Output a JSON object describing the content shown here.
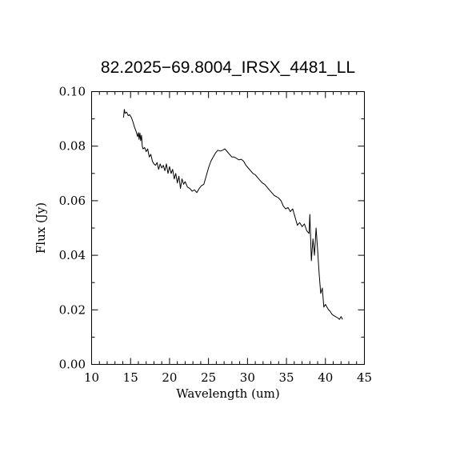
{
  "chart_data": {
    "type": "line",
    "title": "82.2025−69.8004_IRSX_4481_LL",
    "xlabel": "Wavelength (um)",
    "ylabel": "Flux (Jy)",
    "xlim": [
      10,
      45
    ],
    "ylim": [
      0.0,
      0.1
    ],
    "x_ticks": [
      "10",
      "15",
      "20",
      "25",
      "30",
      "35",
      "40",
      "45"
    ],
    "y_ticks": [
      "0.00",
      "0.02",
      "0.04",
      "0.06",
      "0.08",
      "0.10"
    ],
    "grid": false,
    "series": [
      {
        "x": [
          14.1,
          14.2,
          14.3,
          14.5,
          14.7,
          14.9,
          15.1,
          15.3,
          15.5,
          15.7,
          15.9,
          16.0,
          16.1,
          16.2,
          16.3,
          16.4,
          16.5,
          16.6,
          16.8,
          17.0,
          17.2,
          17.4,
          17.6,
          17.8,
          18.0,
          18.2,
          18.4,
          18.6,
          18.8,
          19.0,
          19.2,
          19.4,
          19.6,
          19.8,
          20.0,
          20.2,
          20.4,
          20.6,
          20.8,
          21.0,
          21.2,
          21.4,
          21.6,
          21.8,
          22.0,
          22.3,
          22.6,
          22.9,
          23.2,
          23.5,
          23.8,
          24.1,
          24.4,
          24.7,
          25.0,
          25.3,
          25.6,
          25.9,
          26.2,
          26.5,
          26.8,
          27.1,
          27.4,
          27.7,
          28.0,
          28.3,
          28.6,
          28.9,
          29.2,
          29.5,
          29.8,
          30.1,
          30.4,
          30.7,
          31.0,
          31.3,
          31.6,
          31.9,
          32.2,
          32.5,
          32.8,
          33.1,
          33.4,
          33.7,
          34.0,
          34.3,
          34.6,
          34.9,
          35.2,
          35.5,
          35.8,
          36.1,
          36.4,
          36.7,
          37.0,
          37.3,
          37.6,
          37.9,
          38.0,
          38.2,
          38.4,
          38.6,
          38.8,
          39.0,
          39.2,
          39.4,
          39.6,
          39.8,
          40.0,
          40.2,
          40.4,
          40.6,
          40.8,
          41.0,
          41.3,
          41.6,
          41.8,
          42.0,
          42.2
        ],
        "y": [
          0.0905,
          0.0935,
          0.092,
          0.0925,
          0.0912,
          0.0915,
          0.0905,
          0.089,
          0.087,
          0.0855,
          0.0835,
          0.085,
          0.0825,
          0.0848,
          0.082,
          0.084,
          0.08,
          0.079,
          0.0795,
          0.078,
          0.079,
          0.076,
          0.077,
          0.0745,
          0.0735,
          0.073,
          0.074,
          0.0715,
          0.0735,
          0.072,
          0.073,
          0.071,
          0.0735,
          0.07,
          0.0725,
          0.07,
          0.0715,
          0.068,
          0.07,
          0.0665,
          0.069,
          0.0645,
          0.068,
          0.066,
          0.067,
          0.065,
          0.0645,
          0.0635,
          0.064,
          0.063,
          0.0645,
          0.0655,
          0.066,
          0.069,
          0.072,
          0.0745,
          0.076,
          0.0775,
          0.0785,
          0.0782,
          0.0785,
          0.079,
          0.078,
          0.077,
          0.076,
          0.076,
          0.0755,
          0.075,
          0.0752,
          0.0745,
          0.073,
          0.072,
          0.071,
          0.07,
          0.0695,
          0.0685,
          0.0675,
          0.0665,
          0.066,
          0.065,
          0.064,
          0.063,
          0.062,
          0.0615,
          0.061,
          0.06,
          0.058,
          0.057,
          0.0575,
          0.056,
          0.057,
          0.054,
          0.051,
          0.052,
          0.0505,
          0.0515,
          0.049,
          0.048,
          0.055,
          0.038,
          0.046,
          0.04,
          0.05,
          0.042,
          0.033,
          0.026,
          0.028,
          0.021,
          0.022,
          0.021,
          0.02,
          0.0195,
          0.0185,
          0.018,
          0.0175,
          0.017,
          0.0165,
          0.0175,
          0.0165
        ]
      }
    ]
  }
}
